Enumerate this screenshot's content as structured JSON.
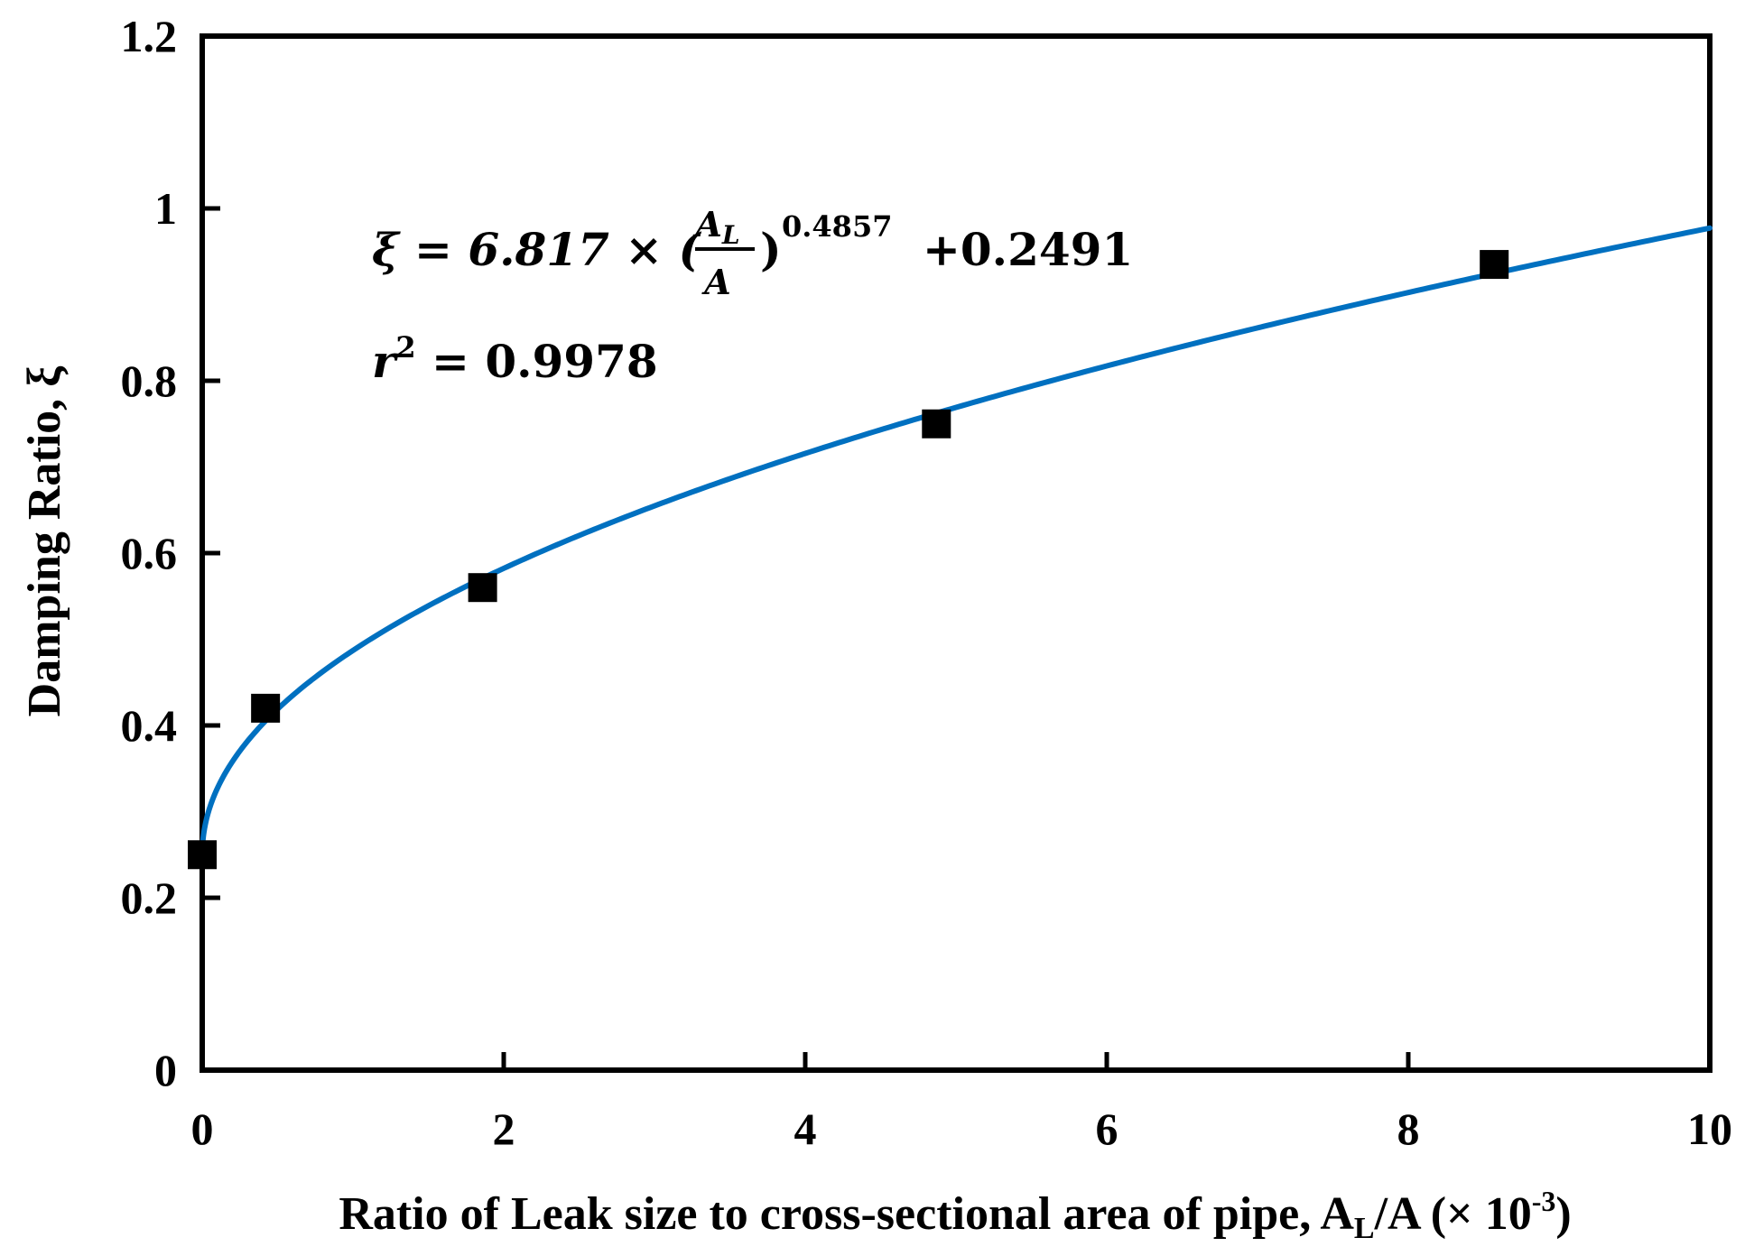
{
  "chart_data": {
    "type": "scatter",
    "title": "",
    "xlabel": "Ratio of Leak size  to cross-sectional area of pipe, A",
    "xlabel_sub": "L",
    "xlabel_tail": "/A  (× 10",
    "xlabel_exp": "-3",
    "xlabel_close": ")",
    "ylabel": "Damping Ratio, ξ",
    "xlim": [
      0,
      10
    ],
    "ylim": [
      0,
      1.2
    ],
    "x_ticks": [
      0,
      2,
      4,
      6,
      8,
      10
    ],
    "x_tick_labels": [
      "0",
      "2",
      "4",
      "6",
      "8",
      "10"
    ],
    "y_ticks": [
      0,
      0.2,
      0.4,
      0.6,
      0.8,
      1.0,
      1.2
    ],
    "y_tick_labels": [
      "0",
      "0.2",
      "0.4",
      "0.6",
      "0.8",
      "1",
      "1.2"
    ],
    "grid": false,
    "series": [
      {
        "kind": "points",
        "marker": "square",
        "color": "#000000",
        "x": [
          0,
          0.42,
          1.86,
          4.87,
          8.57
        ],
        "y": [
          0.25,
          0.42,
          0.56,
          0.75,
          0.935
        ]
      },
      {
        "kind": "fit-line",
        "color": "#0070C0",
        "coefficient": 6.817,
        "exponent": 0.4857,
        "intercept": 0.2491,
        "x_scale": 0.001
      }
    ],
    "annotations": {
      "equation_lhs": "ξ = 6.817 × (",
      "frac_num": "A",
      "frac_num_sub": "L",
      "frac_den": "A",
      "equation_close": ")",
      "equation_exp": "0.4857",
      "equation_tail": "+0.2491",
      "r2_base": "r",
      "r2_exp": "2",
      "r2_value": " = 0.9978"
    }
  }
}
